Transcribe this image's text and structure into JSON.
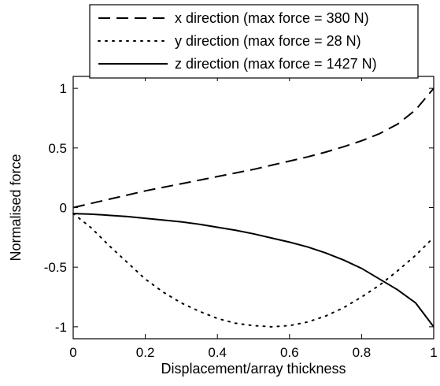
{
  "chart_data": {
    "type": "line",
    "title": "",
    "xlabel": "Displacement/array thickness",
    "ylabel": "Normalised force",
    "xlim": [
      0,
      1
    ],
    "ylim": [
      -1.1,
      1.1
    ],
    "xticks": [
      0,
      0.2,
      0.4,
      0.6,
      0.8,
      1
    ],
    "xtick_labels": [
      "0",
      "0.2",
      "0.4",
      "0.6",
      "0.8",
      "1"
    ],
    "yticks": [
      1,
      0.5,
      0,
      -0.5,
      -1
    ],
    "ytick_labels": [
      "1",
      "0.5",
      "0",
      "-0.5",
      "-1"
    ],
    "grid": false,
    "legend_position": "top-right",
    "series": [
      {
        "name": "x direction (max force = 380 N)",
        "style": "dashed",
        "color": "#000000",
        "x": [
          0,
          0.05,
          0.1,
          0.15,
          0.2,
          0.25,
          0.3,
          0.35,
          0.4,
          0.45,
          0.5,
          0.55,
          0.6,
          0.65,
          0.7,
          0.75,
          0.8,
          0.85,
          0.9,
          0.95,
          1.0
        ],
        "y": [
          0,
          0.035,
          0.07,
          0.105,
          0.14,
          0.17,
          0.2,
          0.23,
          0.26,
          0.29,
          0.32,
          0.355,
          0.39,
          0.425,
          0.465,
          0.51,
          0.56,
          0.62,
          0.7,
          0.82,
          1.0
        ]
      },
      {
        "name": "y direction (max force = 28 N)",
        "style": "dotted",
        "color": "#000000",
        "x": [
          0,
          0.05,
          0.1,
          0.15,
          0.2,
          0.25,
          0.3,
          0.35,
          0.4,
          0.45,
          0.5,
          0.55,
          0.6,
          0.65,
          0.7,
          0.75,
          0.8,
          0.85,
          0.9,
          0.95,
          1.0
        ],
        "y": [
          -0.05,
          -0.17,
          -0.32,
          -0.46,
          -0.6,
          -0.71,
          -0.8,
          -0.87,
          -0.93,
          -0.97,
          -0.99,
          -1.0,
          -0.99,
          -0.96,
          -0.91,
          -0.84,
          -0.75,
          -0.65,
          -0.53,
          -0.4,
          -0.25
        ]
      },
      {
        "name": "z direction (max force = 1427 N)",
        "style": "solid",
        "color": "#000000",
        "x": [
          0,
          0.05,
          0.1,
          0.15,
          0.2,
          0.25,
          0.3,
          0.35,
          0.4,
          0.45,
          0.5,
          0.55,
          0.6,
          0.65,
          0.7,
          0.75,
          0.8,
          0.85,
          0.9,
          0.95,
          1.0
        ],
        "y": [
          -0.05,
          -0.055,
          -0.065,
          -0.075,
          -0.09,
          -0.105,
          -0.12,
          -0.14,
          -0.165,
          -0.19,
          -0.22,
          -0.255,
          -0.29,
          -0.33,
          -0.38,
          -0.44,
          -0.51,
          -0.6,
          -0.69,
          -0.8,
          -1.0
        ]
      }
    ]
  }
}
